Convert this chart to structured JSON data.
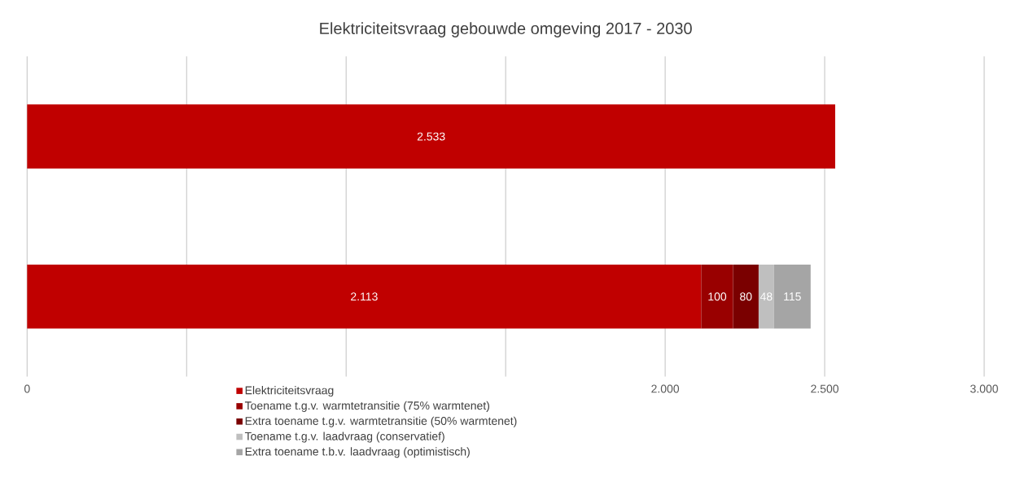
{
  "chart_data": {
    "type": "bar",
    "orientation": "horizontal",
    "stacked": true,
    "title": "Elektriciteitsvraag gebouwde omgeving 2017 - 2030",
    "categories": [
      null,
      null
    ],
    "series": [
      {
        "name": "Elektriciteitsvraag",
        "color": "#c00000",
        "values": [
          2533,
          2113
        ],
        "value_labels": [
          "2.533",
          "2.113"
        ]
      },
      {
        "name": "Toename t.g.v. warmtetransitie (75% warmtenet)",
        "color": "#990000",
        "values": [
          null,
          100
        ],
        "value_labels": [
          null,
          "100"
        ]
      },
      {
        "name": "Extra toename t.g.v. warmtetransitie (50% warmtenet)",
        "color": "#7a0000",
        "values": [
          null,
          80
        ],
        "value_labels": [
          null,
          "80"
        ]
      },
      {
        "name": "Toename t.g.v. laadvraag (conservatief)",
        "color": "#bfbfbf",
        "values": [
          null,
          48
        ],
        "value_labels": [
          null,
          "48"
        ]
      },
      {
        "name": "Extra toename t.b.v. laadvraag (optimistisch)",
        "color": "#a5a5a5",
        "values": [
          null,
          115
        ],
        "value_labels": [
          null,
          "115"
        ]
      }
    ],
    "xlim": [
      0,
      3000
    ],
    "xticks": [
      0,
      {
        "value": 500,
        "label": null
      },
      {
        "value": 1000,
        "label": null
      },
      {
        "value": 1500,
        "label": null
      },
      {
        "value": 2000,
        "label": "2.000"
      },
      {
        "value": 2500,
        "label": "2.500"
      },
      {
        "value": 3000,
        "label": "3.000"
      }
    ],
    "grid": "x",
    "legend": "bottom"
  }
}
